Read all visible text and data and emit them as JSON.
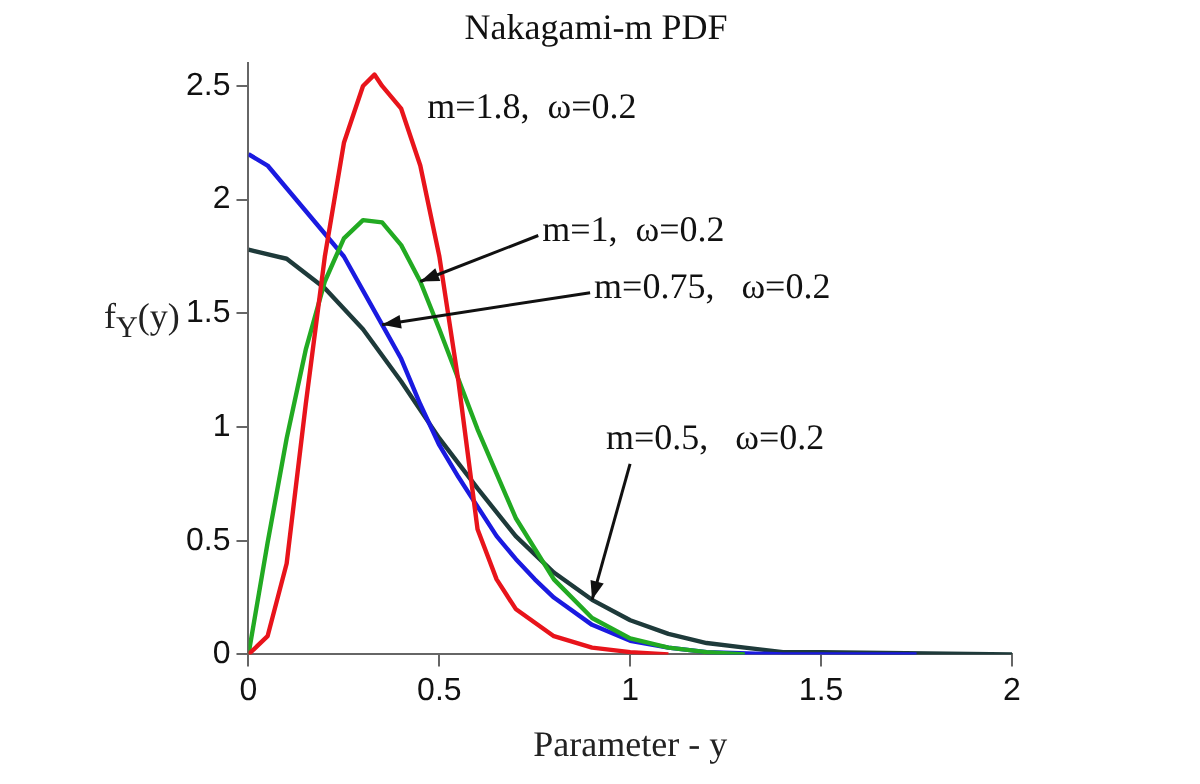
{
  "chart_data": {
    "type": "line",
    "title": "Nakagami-m PDF",
    "xlabel": "Parameter - y",
    "ylabel": "f$_{Y}$(y)",
    "xlim": [
      0,
      2
    ],
    "xticks": [
      0,
      0.5,
      1,
      1.5,
      2
    ],
    "ylim": [
      0,
      2.6
    ],
    "yticks": [
      0,
      0.5,
      1,
      1.5,
      2,
      2.5
    ],
    "grid": false,
    "legend": false,
    "marker": "none",
    "series": [
      {
        "color": "#e8141b",
        "x": [
          0,
          0.05,
          0.1,
          0.15,
          0.2,
          0.25,
          0.3,
          0.33,
          0.35,
          0.4,
          0.45,
          0.5,
          0.55,
          0.6,
          0.65,
          0.7,
          0.8,
          0.9,
          1.0,
          1.1
        ],
        "values": [
          0,
          0.08,
          0.4,
          1.1,
          1.75,
          2.25,
          2.5,
          2.55,
          2.5,
          2.4,
          2.15,
          1.75,
          1.2,
          0.55,
          0.33,
          0.2,
          0.08,
          0.03,
          0.01,
          0
        ]
      },
      {
        "color": "#22aa22",
        "x": [
          0,
          0.05,
          0.1,
          0.15,
          0.2,
          0.25,
          0.3,
          0.35,
          0.4,
          0.45,
          0.5,
          0.6,
          0.7,
          0.8,
          0.9,
          1.0,
          1.1,
          1.2,
          1.3
        ],
        "values": [
          0,
          0.49,
          0.95,
          1.34,
          1.64,
          1.83,
          1.91,
          1.9,
          1.8,
          1.64,
          1.43,
          0.99,
          0.6,
          0.33,
          0.16,
          0.07,
          0.03,
          0.01,
          0
        ]
      },
      {
        "color": "#1a1ae0",
        "x": [
          0,
          0.05,
          0.1,
          0.15,
          0.2,
          0.25,
          0.3,
          0.35,
          0.4,
          0.45,
          0.5,
          0.55,
          0.6,
          0.65,
          0.7,
          0.75,
          0.8,
          0.9,
          1.0,
          1.1,
          1.2,
          1.4,
          1.75
        ],
        "values": [
          2.2,
          2.15,
          2.05,
          1.95,
          1.85,
          1.75,
          1.6,
          1.45,
          1.3,
          1.1,
          0.92,
          0.78,
          0.65,
          0.52,
          0.42,
          0.33,
          0.25,
          0.13,
          0.06,
          0.03,
          0.01,
          0,
          0
        ]
      },
      {
        "color": "#1e3a3a",
        "x": [
          0,
          0.1,
          0.2,
          0.3,
          0.4,
          0.5,
          0.6,
          0.7,
          0.8,
          0.9,
          1.0,
          1.1,
          1.2,
          1.3,
          1.4,
          1.5,
          2.0
        ],
        "values": [
          1.78,
          1.74,
          1.61,
          1.43,
          1.2,
          0.95,
          0.73,
          0.52,
          0.36,
          0.24,
          0.15,
          0.09,
          0.05,
          0.03,
          0.01,
          0.01,
          0
        ]
      }
    ],
    "annotations": [
      {
        "text": "m=1.8,  ω=0.2",
        "x": 0.4,
        "y": 2.4
      },
      {
        "text": "m=1,  ω=0.2",
        "x": 0.45,
        "y": 1.64
      },
      {
        "text": "m=0.75,   ω=0.2",
        "x": 0.35,
        "y": 1.45
      },
      {
        "text": "m=0.5,   ω=0.2",
        "x": 0.9,
        "y": 0.24
      }
    ]
  }
}
